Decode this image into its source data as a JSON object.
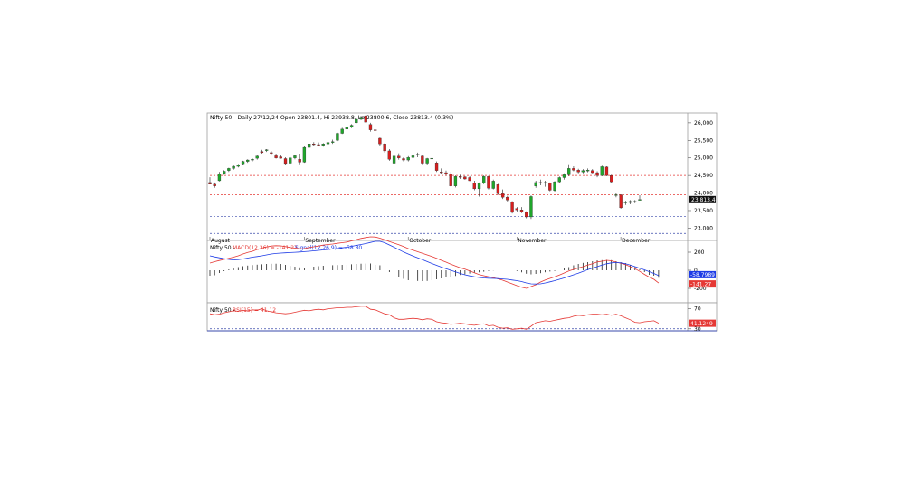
{
  "chart_data": [
    {
      "type": "candlestick",
      "title": "Nifty 50 - Daily 27/12/24 Open 23801.4, Hi 23938.8, Lo 23800.6, Close 23813.4 (0.3%)",
      "y_ticks": [
        "26,000",
        "25,500",
        "25,000",
        "24,500",
        "24,000",
        "23,500",
        "23,000"
      ],
      "ylim": [
        22650,
        26280
      ],
      "last_value_label": "23,813.4",
      "x_labels": [
        "August",
        "September",
        "October",
        "November",
        "December"
      ],
      "x_label_index": [
        0,
        20,
        42,
        65,
        87
      ],
      "horizontal_levels": [
        {
          "value": 24500,
          "color": "#e53935"
        },
        {
          "value": 23950,
          "color": "#e53935"
        },
        {
          "value": 23330,
          "color": "#3949ab"
        },
        {
          "value": 22850,
          "color": "#3949ab"
        }
      ],
      "candles": [
        [
          24300,
          24450,
          24250,
          24250
        ],
        [
          24250,
          24300,
          24150,
          24200
        ],
        [
          24350,
          24600,
          24330,
          24550
        ],
        [
          24560,
          24650,
          24520,
          24620
        ],
        [
          24640,
          24720,
          24600,
          24700
        ],
        [
          24700,
          24790,
          24660,
          24760
        ],
        [
          24760,
          24830,
          24730,
          24800
        ],
        [
          24830,
          24920,
          24790,
          24900
        ],
        [
          24900,
          24960,
          24860,
          24940
        ],
        [
          24940,
          24990,
          24900,
          24960
        ],
        [
          24990,
          25080,
          24950,
          25050
        ],
        [
          25180,
          25230,
          25120,
          25150
        ],
        [
          25210,
          25250,
          25170,
          25230
        ],
        [
          25150,
          25200,
          25080,
          25140
        ],
        [
          25060,
          25120,
          24980,
          25000
        ],
        [
          25030,
          25090,
          24980,
          24990
        ],
        [
          24980,
          25020,
          24800,
          24840
        ],
        [
          24850,
          25030,
          24820,
          25000
        ],
        [
          25000,
          25080,
          24960,
          25060
        ],
        [
          24960,
          25120,
          24820,
          24880
        ],
        [
          24880,
          25330,
          24860,
          25300
        ],
        [
          25300,
          25440,
          25280,
          25400
        ],
        [
          25400,
          25450,
          25350,
          25380
        ],
        [
          25380,
          25440,
          25330,
          25360
        ],
        [
          25360,
          25420,
          25320,
          25400
        ],
        [
          25400,
          25470,
          25370,
          25440
        ],
        [
          25440,
          25520,
          25400,
          25460
        ],
        [
          25500,
          25720,
          25480,
          25700
        ],
        [
          25700,
          25860,
          25680,
          25820
        ],
        [
          25820,
          25900,
          25790,
          25880
        ],
        [
          25880,
          25960,
          25850,
          25930
        ],
        [
          26000,
          26150,
          25980,
          26100
        ],
        [
          26100,
          26200,
          26080,
          26160
        ],
        [
          26200,
          26230,
          26000,
          26020
        ],
        [
          25950,
          26000,
          25750,
          25800
        ],
        [
          25800,
          25820,
          25720,
          25780
        ],
        [
          25560,
          25580,
          25350,
          25400
        ],
        [
          25400,
          25420,
          25150,
          25200
        ],
        [
          25200,
          25250,
          24920,
          24960
        ],
        [
          24850,
          25100,
          24780,
          25050
        ],
        [
          25050,
          25130,
          24950,
          25000
        ],
        [
          24980,
          25020,
          24900,
          24940
        ],
        [
          24940,
          25050,
          24900,
          25010
        ],
        [
          25010,
          25100,
          24960,
          25060
        ],
        [
          25100,
          25150,
          25020,
          25100
        ],
        [
          25050,
          25070,
          24820,
          24850
        ],
        [
          24850,
          25000,
          24800,
          24980
        ],
        [
          24980,
          25050,
          24940,
          24990
        ],
        [
          24860,
          24900,
          24600,
          24640
        ],
        [
          24600,
          24700,
          24530,
          24580
        ],
        [
          24580,
          24640,
          24500,
          24540
        ],
        [
          24540,
          24600,
          24180,
          24200
        ],
        [
          24200,
          24500,
          24160,
          24470
        ],
        [
          24470,
          24520,
          24400,
          24460
        ],
        [
          24460,
          24480,
          24380,
          24400
        ],
        [
          24440,
          24480,
          24340,
          24350
        ],
        [
          24280,
          24350,
          24080,
          24120
        ],
        [
          24120,
          24300,
          23900,
          24280
        ],
        [
          24290,
          24500,
          24250,
          24470
        ],
        [
          24470,
          24490,
          24100,
          24140
        ],
        [
          24130,
          24380,
          24100,
          24340
        ],
        [
          24240,
          24260,
          23950,
          23980
        ],
        [
          23980,
          24100,
          23830,
          23880
        ],
        [
          23880,
          23920,
          23760,
          23800
        ],
        [
          23750,
          23770,
          23420,
          23450
        ],
        [
          23560,
          23600,
          23450,
          23520
        ],
        [
          23520,
          23600,
          23430,
          23470
        ],
        [
          23450,
          23480,
          23280,
          23320
        ],
        [
          23320,
          23930,
          23260,
          23900
        ],
        [
          24200,
          24350,
          24150,
          24300
        ],
        [
          24300,
          24380,
          24220,
          24280
        ],
        [
          24280,
          24350,
          24180,
          24300
        ],
        [
          24280,
          24300,
          24050,
          24080
        ],
        [
          24070,
          24340,
          24040,
          24320
        ],
        [
          24320,
          24470,
          24280,
          24440
        ],
        [
          24440,
          24560,
          24380,
          24520
        ],
        [
          24520,
          24820,
          24480,
          24700
        ],
        [
          24700,
          24760,
          24620,
          24650
        ],
        [
          24650,
          24690,
          24560,
          24600
        ],
        [
          24600,
          24680,
          24560,
          24640
        ],
        [
          24640,
          24700,
          24590,
          24650
        ],
        [
          24640,
          24680,
          24560,
          24580
        ],
        [
          24580,
          24620,
          24450,
          24500
        ],
        [
          24500,
          24780,
          24480,
          24750
        ],
        [
          24740,
          24760,
          24480,
          24500
        ],
        [
          24500,
          24520,
          24300,
          24320
        ],
        [
          23930,
          24000,
          23880,
          23950
        ],
        [
          23950,
          23960,
          23550,
          23580
        ],
        [
          23720,
          23780,
          23660,
          23750
        ],
        [
          23730,
          23800,
          23680,
          23760
        ],
        [
          23740,
          23800,
          23710,
          23760
        ],
        [
          23801.4,
          23938.8,
          23800.6,
          23813.4
        ]
      ]
    },
    {
      "type": "line",
      "title": "Nifty 50 - MACD(12,26) = -141.27, Signal(12,26,9) = -58.80",
      "label_prefix": "Nifty 50 - ",
      "label_macd": "MACD(12,26) = -141.27",
      "label_signal": "Signal(12,26,9) = -58.80",
      "y_ticks": [
        "200",
        "0",
        "-200"
      ],
      "ylim": [
        -360,
        330
      ],
      "value_tags": [
        {
          "text": "-58.7989",
          "color": "#1e3ce6"
        },
        {
          "text": "-141.27",
          "color": "#e53935"
        }
      ],
      "series": [
        {
          "name": "MACD(12,26)",
          "color": "#e53935",
          "values": [
            80,
            95,
            108,
            120,
            132,
            145,
            160,
            180,
            198,
            210,
            230,
            245,
            258,
            268,
            272,
            270,
            262,
            252,
            245,
            238,
            240,
            252,
            260,
            268,
            278,
            285,
            290,
            298,
            305,
            312,
            325,
            338,
            352,
            362,
            370,
            368,
            355,
            338,
            318,
            300,
            282,
            262,
            240,
            222,
            205,
            188,
            170,
            152,
            132,
            110,
            90,
            68,
            48,
            28,
            12,
            -8,
            -28,
            -48,
            -60,
            -72,
            -82,
            -95,
            -110,
            -130,
            -150,
            -170,
            -188,
            -200,
            -180,
            -160,
            -130,
            -108,
            -90,
            -72,
            -52,
            -30,
            -8,
            10,
            25,
            40,
            58,
            72,
            92,
            100,
            110,
            105,
            90,
            78,
            62,
            40,
            18,
            -12,
            -45,
            -75,
            -100,
            -141.27
          ]
        },
        {
          "name": "Signal(12,26,9)",
          "color": "#1e3ce6",
          "values": [
            160,
            148,
            138,
            128,
            120,
            115,
            118,
            125,
            135,
            145,
            152,
            160,
            170,
            180,
            186,
            190,
            193,
            196,
            199,
            202,
            206,
            210,
            215,
            220,
            225,
            230,
            235,
            240,
            248,
            255,
            265,
            275,
            285,
            295,
            308,
            320,
            320,
            305,
            280,
            255,
            228,
            202,
            180,
            158,
            138,
            118,
            96,
            75,
            55,
            35,
            18,
            0,
            -18,
            -35,
            -50,
            -62,
            -72,
            -80,
            -85,
            -88,
            -90,
            -92,
            -96,
            -100,
            -108,
            -115,
            -125,
            -140,
            -150,
            -152,
            -150,
            -140,
            -128,
            -115,
            -100,
            -85,
            -68,
            -50,
            -32,
            -12,
            8,
            24,
            40,
            58,
            72,
            82,
            86,
            82,
            72,
            58,
            40,
            22,
            5,
            -15,
            -35,
            -58.8
          ]
        }
      ],
      "histogram": [
        -60,
        -55,
        -30,
        -10,
        10,
        25,
        35,
        45,
        52,
        58,
        62,
        66,
        70,
        72,
        72,
        70,
        60,
        48,
        40,
        32,
        28,
        32,
        40,
        45,
        50,
        54,
        56,
        58,
        60,
        62,
        66,
        70,
        72,
        74,
        75,
        60,
        55,
        0,
        -20,
        -60,
        -80,
        -95,
        -110,
        -115,
        -118,
        -120,
        -118,
        -110,
        -100,
        -90,
        -80,
        -72,
        -62,
        -52,
        -44,
        -36,
        -28,
        -22,
        -16,
        -8,
        -2,
        0,
        0,
        0,
        0,
        -8,
        -22,
        -38,
        -45,
        -40,
        -32,
        -22,
        -14,
        -8,
        0,
        20,
        35,
        55,
        70,
        82,
        90,
        100,
        110,
        112,
        115,
        112,
        100,
        90,
        80,
        60,
        35,
        12,
        -20,
        -50,
        -60,
        -82.47
      ]
    },
    {
      "type": "line",
      "title": "Nifty 50 - RSI(15) = 41.12",
      "label_prefix": "Nifty 50 - ",
      "label_rsi": "RSI(15) = 41.12",
      "y_ticks": [
        "70",
        "30"
      ],
      "ylim": [
        26,
        82
      ],
      "value_tags": [
        {
          "text": "41.1249",
          "color": "#e53935"
        }
      ],
      "levels": [
        30
      ],
      "series": [
        {
          "name": "RSI(15)",
          "color": "#e53935",
          "values": [
            60,
            58,
            59,
            62,
            64,
            66,
            65,
            67,
            66,
            68,
            67,
            70,
            66,
            64,
            62,
            61,
            60,
            61,
            63,
            65,
            67,
            66,
            68,
            69,
            68,
            70,
            71,
            72,
            72,
            73,
            73,
            74,
            75,
            75,
            69,
            68,
            64,
            60,
            58,
            52,
            49,
            49,
            50,
            51,
            50,
            48,
            50,
            49,
            44,
            42,
            41,
            39,
            40,
            41,
            40,
            38,
            37,
            39,
            40,
            36,
            37,
            33,
            31,
            32,
            29,
            30,
            31,
            29,
            35,
            42,
            44,
            46,
            45,
            47,
            49,
            51,
            52,
            55,
            57,
            56,
            58,
            59,
            59,
            58,
            59,
            57,
            59,
            56,
            52,
            48,
            43,
            42,
            44,
            45,
            46,
            41.12
          ]
        }
      ]
    }
  ]
}
